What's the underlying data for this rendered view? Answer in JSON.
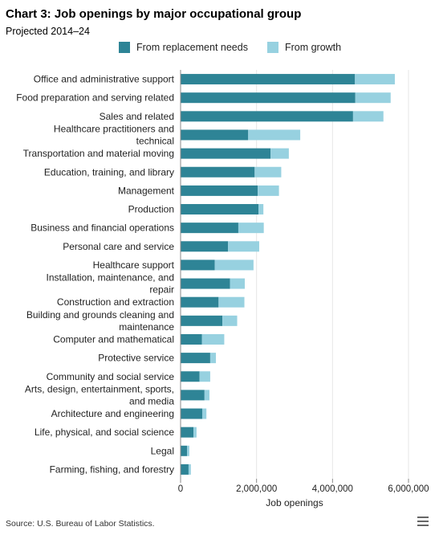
{
  "chart_data": {
    "type": "bar",
    "orientation": "horizontal",
    "stacked": true,
    "title": "Chart 3: Job openings by major occupational group",
    "subtitle": "Projected 2014–24",
    "xlabel": "Job openings",
    "ylabel": "",
    "xlim": [
      0,
      6000000
    ],
    "x_ticks": [
      0,
      2000000,
      4000000,
      6000000
    ],
    "x_tick_labels": [
      "0",
      "2,000,000",
      "4,000,000",
      "6,000,000"
    ],
    "grid": true,
    "legend_position": "top",
    "categories": [
      "Office and administrative support",
      "Food preparation and serving related",
      "Sales and related",
      "Healthcare practitioners and technical",
      "Transportation and material moving",
      "Education, training, and library",
      "Management",
      "Production",
      "Business and financial operations",
      "Personal care and service",
      "Healthcare support",
      "Installation, maintenance, and repair",
      "Construction and extraction",
      "Building and grounds cleaning and maintenance",
      "Computer and mathematical",
      "Protective service",
      "Community and social service",
      "Arts, design, entertainment, sports, and media",
      "Architecture and engineering",
      "Life, physical, and social science",
      "Legal",
      "Farming, fishing, and forestry"
    ],
    "category_lines": [
      [
        "Office and administrative support"
      ],
      [
        "Food preparation and serving related"
      ],
      [
        "Sales and related"
      ],
      [
        "Healthcare practitioners and",
        "technical"
      ],
      [
        "Transportation and material moving"
      ],
      [
        "Education, training, and library"
      ],
      [
        "Management"
      ],
      [
        "Production"
      ],
      [
        "Business and financial operations"
      ],
      [
        "Personal care and service"
      ],
      [
        "Healthcare support"
      ],
      [
        "Installation, maintenance, and",
        "repair"
      ],
      [
        "Construction and extraction"
      ],
      [
        "Building and grounds cleaning and",
        "maintenance"
      ],
      [
        "Computer and mathematical"
      ],
      [
        "Protective service"
      ],
      [
        "Community and social service"
      ],
      [
        "Arts, design, entertainment, sports,",
        "and media"
      ],
      [
        "Architecture and engineering"
      ],
      [
        "Life, physical, and social science"
      ],
      [
        "Legal"
      ],
      [
        "Farming, fishing, and forestry"
      ]
    ],
    "series": [
      {
        "name": "From replacement needs",
        "color": "#2e8496",
        "values": [
          4590000,
          4600000,
          4540000,
          1780000,
          2370000,
          1950000,
          2030000,
          2050000,
          1520000,
          1250000,
          900000,
          1300000,
          1000000,
          1100000,
          560000,
          780000,
          500000,
          630000,
          570000,
          340000,
          170000,
          210000
        ]
      },
      {
        "name": "From growth",
        "color": "#97d1e0",
        "values": [
          1050000,
          930000,
          800000,
          1370000,
          480000,
          700000,
          560000,
          130000,
          670000,
          820000,
          1020000,
          390000,
          680000,
          390000,
          590000,
          150000,
          280000,
          130000,
          110000,
          80000,
          60000,
          60000
        ]
      }
    ]
  },
  "source": "Source: U.S. Bureau of Labor Statistics.",
  "icons": {
    "menu": "menu-icon"
  }
}
